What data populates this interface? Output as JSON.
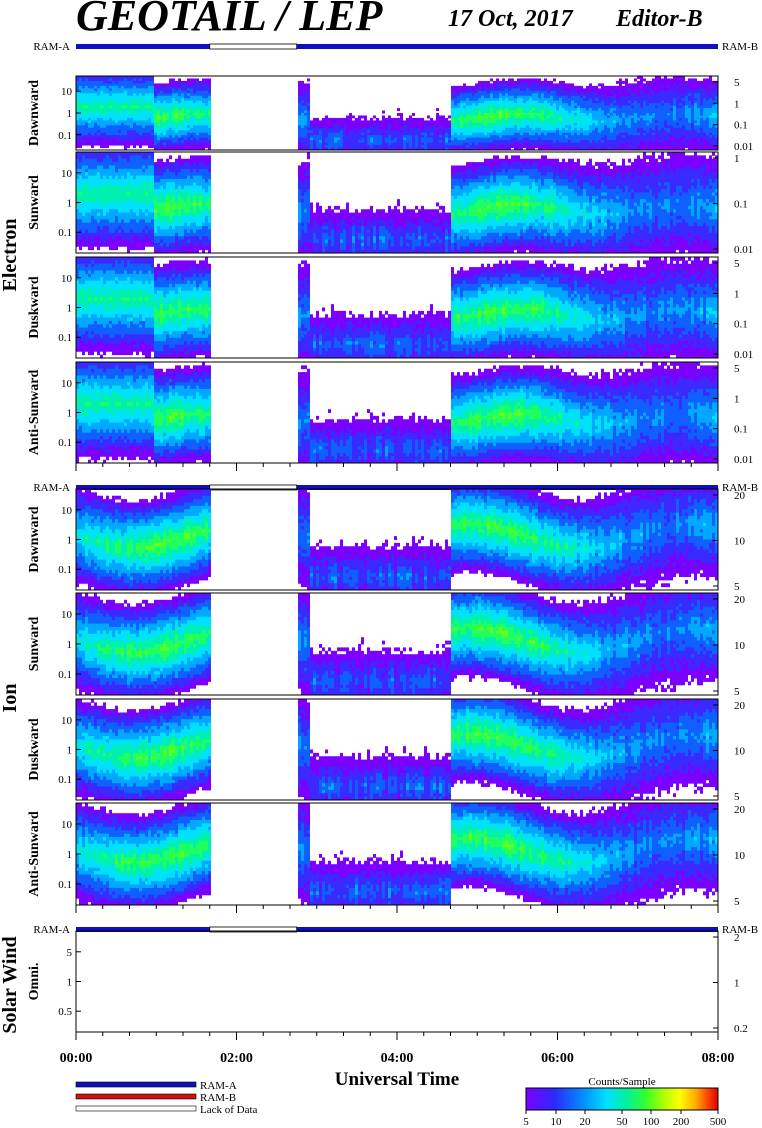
{
  "header": {
    "instrument": "GEOTAIL / LEP",
    "date": "17 Oct, 2017",
    "edition": "Editor-B"
  },
  "labels": {
    "ram_a": "RAM-A",
    "ram_b": "RAM-B",
    "species_electron": "Electron",
    "species_ion": "Ion",
    "species_sw": "Solar Wind",
    "x_axis": "Universal Time",
    "colorbar_title": "Counts/Sample"
  },
  "legend": [
    {
      "label": "RAM-A",
      "color": "#1010c0"
    },
    {
      "label": "RAM-B",
      "color": "#d01010"
    },
    {
      "label": "Lack of Data",
      "color": "#ffffff"
    }
  ],
  "colorbar": {
    "ticks": [
      "5",
      "10",
      "20",
      "50",
      "100",
      "200",
      "500"
    ],
    "colors": [
      "#7b00ff",
      "#2a2aff",
      "#0090ff",
      "#00e0ff",
      "#00f0a0",
      "#30ff30",
      "#b0ff00",
      "#ffff00",
      "#ffb000",
      "#ff4000",
      "#e00000"
    ]
  },
  "colors": {
    "status_bar": "#1010c0",
    "gap": "#ffffff"
  },
  "chart_data": {
    "type": "heatmap",
    "time_range": [
      "00:00",
      "08:00"
    ],
    "x_ticks": [
      "00:00",
      "02:00",
      "04:00",
      "06:00",
      "08:00"
    ],
    "data_gaps_ut": [
      [
        "01:40",
        "02:45"
      ]
    ],
    "groups": [
      {
        "species": "Electron",
        "status": "RAM-A",
        "panels": [
          {
            "name": "Dawnward",
            "left_ticks": [
              "10",
              "1",
              "0.1"
            ],
            "right_ticks": [
              "5",
              "1",
              "0.1",
              "0.01"
            ]
          },
          {
            "name": "Sunward",
            "left_ticks": [
              "10",
              "1",
              "0.1"
            ],
            "right_ticks": [
              "1",
              "0.1",
              "0.01"
            ]
          },
          {
            "name": "Duskward",
            "left_ticks": [
              "10",
              "1",
              "0.1"
            ],
            "right_ticks": [
              "5",
              "1",
              "0.1",
              "0.01"
            ]
          },
          {
            "name": "Anti-Sunward",
            "left_ticks": [
              "10",
              "1",
              "0.1"
            ],
            "right_ticks": [
              "5",
              "1",
              "0.1",
              "0.01"
            ]
          }
        ]
      },
      {
        "species": "Ion",
        "status": "RAM-A",
        "panels": [
          {
            "name": "Dawnward",
            "left_ticks": [
              "10",
              "1",
              "0.1"
            ],
            "right_ticks": [
              "20",
              "10",
              "5"
            ]
          },
          {
            "name": "Sunward",
            "left_ticks": [
              "10",
              "1",
              "0.1"
            ],
            "right_ticks": [
              "20",
              "10",
              "5"
            ]
          },
          {
            "name": "Duskward",
            "left_ticks": [
              "10",
              "1",
              "0.1"
            ],
            "right_ticks": [
              "20",
              "10",
              "5"
            ]
          },
          {
            "name": "Anti-Sunward",
            "left_ticks": [
              "10",
              "1",
              "0.1"
            ],
            "right_ticks": [
              "20",
              "10",
              "5"
            ]
          }
        ]
      },
      {
        "species": "Solar Wind",
        "status": "RAM-A",
        "panels": [
          {
            "name": "Omni.",
            "left_ticks": [
              "5",
              "1",
              "0.5"
            ],
            "right_ticks": [
              "2",
              "1",
              "0.2"
            ]
          }
        ]
      }
    ]
  }
}
